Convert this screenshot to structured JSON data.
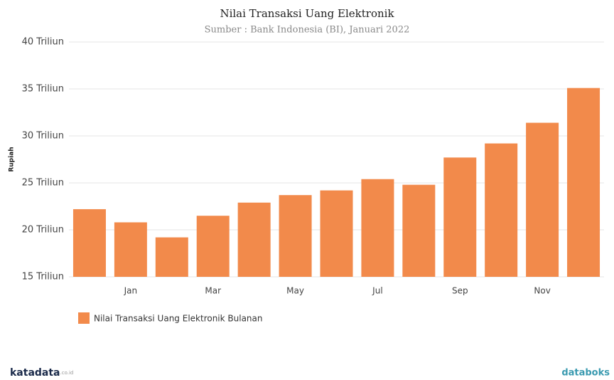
{
  "chart_data": {
    "type": "bar",
    "title": "Nilai Transaksi Uang Elektronik",
    "subtitle": "Sumber : Bank Indonesia (BI), Januari 2022",
    "y_label": "Rupiah",
    "categories": [
      null,
      "Jan",
      null,
      "Mar",
      null,
      "May",
      null,
      "Jul",
      null,
      "Sep",
      null,
      "Nov",
      null
    ],
    "series": [
      {
        "name": "Nilai Transaksi Uang Elektronik Bulanan",
        "color": "#f28a4b",
        "values": [
          22.2,
          20.8,
          19.2,
          21.5,
          22.9,
          23.7,
          24.2,
          25.4,
          24.8,
          27.7,
          29.2,
          31.4,
          35.1
        ]
      }
    ],
    "ylim": [
      15,
      40
    ],
    "yticks": [
      {
        "value": 15,
        "label": "15 Triliun"
      },
      {
        "value": 20,
        "label": "20 Triliun"
      },
      {
        "value": 25,
        "label": "25 Triliun"
      },
      {
        "value": 30,
        "label": "30 Triliun"
      },
      {
        "value": 35,
        "label": "35 Triliun"
      },
      {
        "value": 40,
        "label": "40 Triliun"
      }
    ],
    "grid": true,
    "legend": "bottom-left"
  },
  "footer": {
    "left": "katadata",
    "left_suffix": ".co.id",
    "right": "databoks"
  }
}
